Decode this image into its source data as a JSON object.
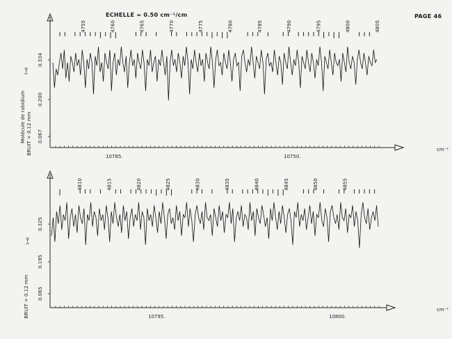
{
  "page": {
    "scale_label": "ECHELLE = 0.50 cm⁻¹/cm",
    "page_number": "PAGE 46",
    "molecule_label": "Molécule de rubidium"
  },
  "chart_data": [
    {
      "type": "line",
      "title": "",
      "ylabel_top": "I→I",
      "ylabel_bottom": "BRUIT = 0.12 mm",
      "unit_label": "cm⁻¹",
      "y_tick_labels": [
        "0.334",
        "0.200",
        "0.067"
      ],
      "x_tick_labels": [
        "10785.",
        "10750."
      ],
      "line_numbers": [
        "4755",
        "4760",
        "4765",
        "4770",
        "4775",
        "4780",
        "4785",
        "4790",
        "4795",
        "4800",
        "4805"
      ],
      "grid": false,
      "series": [
        {
          "values": [
            0.3,
            0.22,
            0.28,
            0.26,
            0.3,
            0.33,
            0.28,
            0.34,
            0.25,
            0.3,
            0.24,
            0.32,
            0.3,
            0.27,
            0.33,
            0.29,
            0.31,
            0.26,
            0.34,
            0.3,
            0.22,
            0.31,
            0.28,
            0.33,
            0.3,
            0.2,
            0.32,
            0.29,
            0.35,
            0.27,
            0.3,
            0.24,
            0.33,
            0.3,
            0.28,
            0.34,
            0.21,
            0.3,
            0.33,
            0.26,
            0.31,
            0.29,
            0.35,
            0.3,
            0.27,
            0.32,
            0.22,
            0.3,
            0.34,
            0.29,
            0.31,
            0.25,
            0.33,
            0.3,
            0.28,
            0.34,
            0.3,
            0.21,
            0.31,
            0.29,
            0.34,
            0.27,
            0.3,
            0.32,
            0.24,
            0.31,
            0.29,
            0.34,
            0.3,
            0.26,
            0.32,
            0.18,
            0.3,
            0.34,
            0.29,
            0.31,
            0.27,
            0.33,
            0.3,
            0.25,
            0.32,
            0.29,
            0.35,
            0.3,
            0.2,
            0.31,
            0.28,
            0.34,
            0.3,
            0.27,
            0.33,
            0.29,
            0.31,
            0.24,
            0.33,
            0.3,
            0.28,
            0.35,
            0.3,
            0.22,
            0.31,
            0.34,
            0.29,
            0.3,
            0.26,
            0.33,
            0.3,
            0.28,
            0.34,
            0.3,
            0.24,
            0.31,
            0.33,
            0.29,
            0.3,
            0.21,
            0.32,
            0.34,
            0.3,
            0.27,
            0.31,
            0.29,
            0.35,
            0.3,
            0.25,
            0.32,
            0.3,
            0.28,
            0.34,
            0.3,
            0.2,
            0.31,
            0.33,
            0.29,
            0.3,
            0.27,
            0.34,
            0.3,
            0.26,
            0.32,
            0.3,
            0.23,
            0.33,
            0.3,
            0.28,
            0.35,
            0.3,
            0.26,
            0.31,
            0.29,
            0.34,
            0.3,
            0.22,
            0.32,
            0.3,
            0.28,
            0.34,
            0.3,
            0.27,
            0.33,
            0.3,
            0.25,
            0.31,
            0.29,
            0.35,
            0.3,
            0.21,
            0.32,
            0.3,
            0.28,
            0.34,
            0.3,
            0.26,
            0.33,
            0.3,
            0.29,
            0.31,
            0.24,
            0.33,
            0.3,
            0.27,
            0.35,
            0.3,
            0.28,
            0.32,
            0.3,
            0.23,
            0.31,
            0.34,
            0.3,
            0.28,
            0.33,
            0.3,
            0.26,
            0.32,
            0.3,
            0.29,
            0.34,
            0.3,
            0.31
          ]
        }
      ]
    },
    {
      "type": "line",
      "title": "",
      "ylabel_top": "I→I",
      "ylabel_bottom": "BRUIT = 0.12 mm",
      "unit_label": "cm⁻¹",
      "y_tick_labels": [
        "0.325",
        "0.195",
        "0.065"
      ],
      "x_tick_labels": [
        "10795.",
        "10800."
      ],
      "line_numbers": [
        "4810",
        "4815",
        "4820",
        "4825",
        "4830",
        "4835",
        "4840",
        "4845",
        "4850",
        "4855"
      ],
      "grid": false,
      "series": [
        {
          "values": [
            0.24,
            0.3,
            0.22,
            0.32,
            0.28,
            0.34,
            0.26,
            0.31,
            0.29,
            0.35,
            0.23,
            0.3,
            0.33,
            0.27,
            0.31,
            0.25,
            0.34,
            0.3,
            0.28,
            0.33,
            0.21,
            0.31,
            0.29,
            0.35,
            0.27,
            0.32,
            0.3,
            0.24,
            0.33,
            0.29,
            0.31,
            0.26,
            0.34,
            0.3,
            0.22,
            0.32,
            0.28,
            0.35,
            0.3,
            0.27,
            0.31,
            0.25,
            0.34,
            0.29,
            0.32,
            0.23,
            0.3,
            0.33,
            0.27,
            0.31,
            0.29,
            0.35,
            0.26,
            0.32,
            0.3,
            0.21,
            0.33,
            0.29,
            0.31,
            0.27,
            0.34,
            0.3,
            0.25,
            0.32,
            0.28,
            0.35,
            0.3,
            0.23,
            0.31,
            0.33,
            0.28,
            0.3,
            0.26,
            0.34,
            0.29,
            0.32,
            0.24,
            0.31,
            0.3,
            0.35,
            0.27,
            0.33,
            0.29,
            0.22,
            0.31,
            0.34,
            0.3,
            0.28,
            0.32,
            0.26,
            0.35,
            0.3,
            0.29,
            0.31,
            0.24,
            0.33,
            0.3,
            0.27,
            0.34,
            0.29,
            0.32,
            0.25,
            0.31,
            0.3,
            0.35,
            0.28,
            0.33,
            0.22,
            0.3,
            0.32,
            0.29,
            0.34,
            0.27,
            0.31,
            0.3,
            0.26,
            0.35,
            0.29,
            0.32,
            0.24,
            0.33,
            0.3,
            0.28,
            0.34,
            0.31,
            0.27,
            0.3,
            0.23,
            0.33,
            0.29,
            0.35,
            0.3,
            0.26,
            0.32,
            0.28,
            0.34,
            0.3,
            0.25,
            0.31,
            0.33,
            0.29,
            0.21,
            0.32,
            0.3,
            0.35,
            0.27,
            0.31,
            0.29,
            0.33,
            0.26,
            0.3,
            0.34,
            0.28,
            0.32,
            0.24,
            0.31,
            0.3,
            0.35,
            0.29,
            0.27,
            0.33,
            0.3,
            0.22,
            0.32,
            0.34,
            0.3,
            0.28,
            0.31,
            0.26,
            0.35,
            0.3,
            0.29,
            0.33,
            0.25,
            0.31,
            0.3,
            0.34,
            0.27,
            0.32,
            0.29,
            0.2,
            0.31,
            0.35,
            0.3,
            0.28,
            0.33,
            0.26,
            0.3,
            0.32,
            0.29,
            0.34,
            0.27
          ]
        }
      ]
    }
  ]
}
